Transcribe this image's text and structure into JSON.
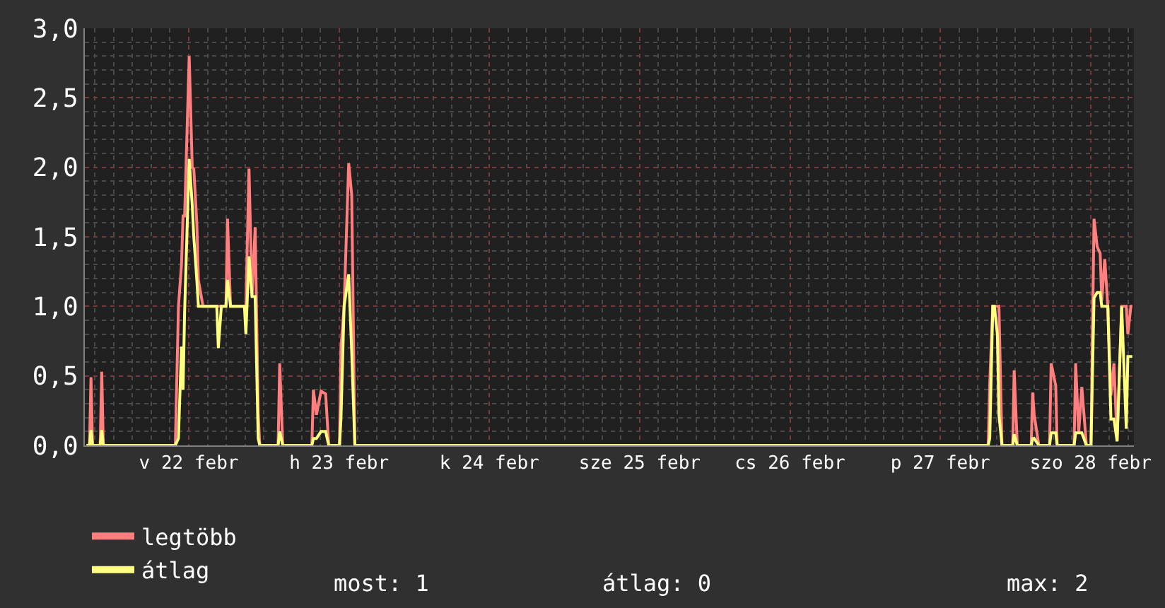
{
  "chart_data": {
    "type": "line",
    "x": [
      "--02-21T16:40",
      "--02-21T17:09",
      "--02-21T17:23",
      "--02-21T17:38",
      "--02-21T18:51",
      "--02-21T19:06",
      "--02-21T19:21",
      "--02-22T06:51",
      "--02-22T07:21",
      "--02-22T07:50",
      "--02-22T08:05",
      "--02-22T08:20",
      "--02-22T09:04",
      "--02-22T09:33",
      "--02-22T09:48",
      "--02-22T10:17",
      "--02-22T10:32",
      "--02-22T11:16",
      "--02-22T13:28",
      "--02-22T13:43",
      "--02-22T14:12",
      "--02-22T14:56",
      "--02-22T15:11",
      "--02-22T15:40",
      "--02-22T17:53",
      "--02-22T18:07",
      "--02-22T18:37",
      "--02-22T19:06",
      "--02-22T19:36",
      "--02-22T20:05",
      "--02-22T20:20",
      "--02-22T23:16",
      "--02-22T23:31",
      "--02-23T00:00",
      "--02-23T04:39",
      "--02-23T04:54",
      "--02-23T05:23",
      "--02-23T06:07",
      "--02-23T06:51",
      "--02-23T07:21",
      "--02-23T09:04",
      "--02-23T09:18",
      "--02-23T09:48",
      "--02-23T10:32",
      "--02-23T11:01",
      "--02-23T11:31",
      "--02-27T16:39",
      "--02-27T16:54",
      "--02-27T17:23",
      "--02-27T17:38",
      "--02-27T18:07",
      "--02-27T18:22",
      "--02-27T18:51",
      "--02-27T20:34",
      "--02-27T20:48",
      "--02-27T21:18",
      "--02-27T23:31",
      "--02-27T23:45",
      "--02-28T00:00",
      "--02-28T00:44",
      "--02-28T02:27",
      "--02-28T02:42",
      "--02-28T03:26",
      "--02-28T03:40",
      "--02-28T06:22",
      "--02-28T06:37",
      "--02-28T07:06",
      "--02-28T07:36",
      "--02-28T08:20",
      "--02-28T09:04",
      "--02-28T09:33",
      "--02-28T10:03",
      "--02-28T10:32",
      "--02-28T10:47",
      "--02-28T11:16",
      "--02-28T11:45",
      "--02-28T12:15",
      "--02-28T12:44",
      "--02-28T13:14",
      "--02-28T13:58",
      "--02-28T14:42",
      "--02-28T14:57",
      "--02-28T15:26",
      "--02-28T15:40"
    ],
    "series": [
      {
        "name": "legtöbb",
        "color": "#ff7f7f",
        "values": [
          0,
          0,
          0.49,
          0,
          0,
          0.53,
          0,
          0,
          1.0,
          1.3,
          1.65,
          1.65,
          2.8,
          2.0,
          1.99,
          1.6,
          1.19,
          1.0,
          1.0,
          1.0,
          1.0,
          1.0,
          1.63,
          1.0,
          1.0,
          1.0,
          1.99,
          1.07,
          1.57,
          0.23,
          0,
          0,
          0.59,
          0,
          0,
          0.4,
          0.22,
          0.39,
          0.37,
          0,
          0,
          0.7,
          1.0,
          2.03,
          1.8,
          0,
          0,
          0.45,
          1.0,
          1.0,
          1.0,
          1.0,
          0,
          0,
          0.54,
          0,
          0,
          0.38,
          0.22,
          0,
          0,
          0.59,
          0.43,
          0,
          0,
          0.59,
          0.09,
          0.42,
          0,
          0,
          1.63,
          1.43,
          1.38,
          1.04,
          1.34,
          1.0,
          0.36,
          0.59,
          0.03,
          1.0,
          1.0,
          0.8,
          1.0,
          1.0
        ]
      },
      {
        "name": "átlag",
        "color": "#ffff80",
        "values": [
          0,
          0,
          0.11,
          0,
          0,
          0.11,
          0,
          0,
          0.05,
          0.71,
          0.4,
          0.96,
          2.06,
          1.73,
          1.5,
          1.19,
          1.0,
          1.0,
          1.0,
          0.7,
          1.0,
          1.0,
          1.19,
          1.0,
          1.0,
          0.8,
          1.36,
          1.07,
          1.07,
          0.05,
          0,
          0,
          0.1,
          0,
          0,
          0.05,
          0.05,
          0.1,
          0.1,
          0,
          0,
          0.19,
          1.0,
          1.23,
          0.67,
          0,
          0,
          0.05,
          1.0,
          1.0,
          0.8,
          0.22,
          0,
          0,
          0.08,
          0,
          0,
          0.05,
          0.05,
          0,
          0,
          0.09,
          0.09,
          0,
          0,
          0.09,
          0.09,
          0.09,
          0,
          0,
          1.06,
          1.1,
          1.1,
          1.0,
          1.0,
          1.0,
          0.19,
          0.19,
          0.03,
          1.0,
          0.12,
          0.64,
          0.64,
          0.64
        ]
      }
    ],
    "xlim": [
      "--02-21T16:24",
      "--02-28T15:55"
    ],
    "xticks": [
      {
        "value": "--02-22T09:00",
        "label": "v 22 febr"
      },
      {
        "value": "--02-23T09:00",
        "label": "h 23 febr"
      },
      {
        "value": "--02-24T09:00",
        "label": "k 24 febr"
      },
      {
        "value": "--02-25T09:00",
        "label": "sze 25 febr"
      },
      {
        "value": "--02-26T09:00",
        "label": "cs 26 febr"
      },
      {
        "value": "--02-27T09:00",
        "label": "p 27 febr"
      },
      {
        "value": "--02-28T09:00",
        "label": "szo 28 febr"
      }
    ],
    "ylim": [
      0,
      3.0
    ],
    "yticks": [
      {
        "value": 0,
        "label": "0,0"
      },
      {
        "value": 0.5,
        "label": "0,5"
      },
      {
        "value": 1.0,
        "label": "1,0"
      },
      {
        "value": 1.5,
        "label": "1,5"
      },
      {
        "value": 2.0,
        "label": "2,0"
      },
      {
        "value": 2.5,
        "label": "2,5"
      },
      {
        "value": 3.0,
        "label": "3,0"
      }
    ],
    "grid": true,
    "legend": "bottom left",
    "marker": "none",
    "line_style": "solid",
    "annotations": [
      "most: 1",
      "átlag: 0",
      "max: 2"
    ]
  }
}
